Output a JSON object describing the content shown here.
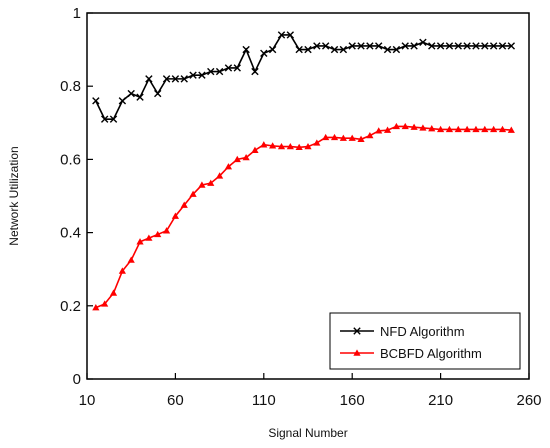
{
  "chart_data": {
    "type": "line",
    "title": "",
    "xlabel": "Signal Number",
    "ylabel": "Network Utilization",
    "xlim": [
      10,
      260
    ],
    "ylim": [
      0,
      1
    ],
    "x_ticks": [
      "10",
      "60",
      "110",
      "160",
      "210",
      "260"
    ],
    "y_ticks": [
      "0",
      "0.2",
      "0.4",
      "0.6",
      "0.8",
      "1"
    ],
    "grid": false,
    "legend_position": "bottom-right",
    "x": [
      15,
      20,
      25,
      30,
      35,
      40,
      45,
      50,
      55,
      60,
      65,
      70,
      75,
      80,
      85,
      90,
      95,
      100,
      105,
      110,
      115,
      120,
      125,
      130,
      135,
      140,
      145,
      150,
      155,
      160,
      165,
      170,
      175,
      180,
      185,
      190,
      195,
      200,
      205,
      210,
      215,
      220,
      225,
      230,
      235,
      240,
      245,
      250
    ],
    "series": [
      {
        "name": "NFD Algorithm",
        "color": "#000000",
        "marker": "x",
        "values": [
          0.76,
          0.71,
          0.71,
          0.76,
          0.78,
          0.77,
          0.82,
          0.78,
          0.82,
          0.82,
          0.82,
          0.83,
          0.83,
          0.84,
          0.84,
          0.85,
          0.85,
          0.9,
          0.84,
          0.89,
          0.9,
          0.94,
          0.94,
          0.9,
          0.9,
          0.91,
          0.91,
          0.9,
          0.9,
          0.91,
          0.91,
          0.91,
          0.91,
          0.9,
          0.9,
          0.91,
          0.91,
          0.92,
          0.91,
          0.91,
          0.91,
          0.91,
          0.91,
          0.91,
          0.91,
          0.91,
          0.91,
          0.91
        ]
      },
      {
        "name": "BCBFD Algorithm",
        "color": "#ff0000",
        "marker": "triangle",
        "values": [
          0.195,
          0.205,
          0.235,
          0.295,
          0.325,
          0.375,
          0.385,
          0.395,
          0.405,
          0.445,
          0.475,
          0.505,
          0.53,
          0.535,
          0.555,
          0.58,
          0.6,
          0.605,
          0.625,
          0.64,
          0.637,
          0.635,
          0.635,
          0.633,
          0.635,
          0.645,
          0.66,
          0.66,
          0.658,
          0.658,
          0.655,
          0.665,
          0.678,
          0.68,
          0.69,
          0.69,
          0.688,
          0.686,
          0.684,
          0.682,
          0.682,
          0.682,
          0.682,
          0.682,
          0.682,
          0.682,
          0.682,
          0.68
        ]
      }
    ]
  }
}
